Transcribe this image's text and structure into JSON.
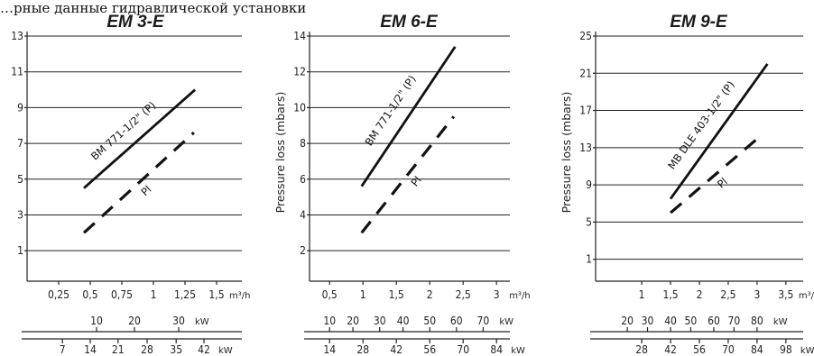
{
  "overlay_text": "…рные данные гидравлической установки",
  "chart_data": [
    {
      "type": "line",
      "title": "EM 3-E",
      "ylabel": "",
      "ylim": [
        0,
        13
      ],
      "yticks": [
        "1",
        "3",
        "5",
        "7",
        "9",
        "11",
        "13"
      ],
      "xlim": [
        0.0,
        1.7
      ],
      "xticks": [
        "0,25",
        "0,5",
        "0,75",
        "1",
        "1,25",
        "1,5"
      ],
      "xunit": "m³/h",
      "scale2": {
        "unit": "kW",
        "ticks": [
          {
            "label": "10",
            "x": 0.55
          },
          {
            "label": "20",
            "x": 0.85
          },
          {
            "label": "30",
            "x": 1.2
          }
        ]
      },
      "scale3": {
        "unit": "kW",
        "ticks": [
          {
            "label": "7",
            "x": 0.28
          },
          {
            "label": "14",
            "x": 0.5
          },
          {
            "label": "21",
            "x": 0.72
          },
          {
            "label": "28",
            "x": 0.95
          },
          {
            "label": "35",
            "x": 1.18
          },
          {
            "label": "42",
            "x": 1.4
          }
        ]
      },
      "series": [
        {
          "name": "BM 771-1/2\" (P)",
          "style": "solid",
          "x": [
            0.45,
            1.33
          ],
          "y": [
            4.5,
            10.0
          ]
        },
        {
          "name": "Pl",
          "style": "dashed",
          "x": [
            0.45,
            1.32
          ],
          "y": [
            2.0,
            7.6
          ]
        }
      ]
    },
    {
      "type": "line",
      "title": "EM 6-E",
      "ylabel": "Pressure loss (mbars)",
      "ylim": [
        1,
        14
      ],
      "yticks": [
        "2",
        "4",
        "6",
        "8",
        "10",
        "12",
        "14"
      ],
      "xlim": [
        0.2,
        3.2
      ],
      "xticks": [
        "0,5",
        "1",
        "1,5",
        "2",
        "2,5",
        "3"
      ],
      "xunit": "m³/h",
      "scale2": {
        "unit": "kW",
        "ticks": [
          {
            "label": "10",
            "x": 0.5
          },
          {
            "label": "20",
            "x": 0.85
          },
          {
            "label": "30",
            "x": 1.25
          },
          {
            "label": "40",
            "x": 1.6
          },
          {
            "label": "50",
            "x": 2.0
          },
          {
            "label": "60",
            "x": 2.4
          },
          {
            "label": "70",
            "x": 2.8
          }
        ]
      },
      "scale3": {
        "unit": "kW",
        "ticks": [
          {
            "label": "14",
            "x": 0.5
          },
          {
            "label": "28",
            "x": 1.0
          },
          {
            "label": "42",
            "x": 1.5
          },
          {
            "label": "56",
            "x": 2.0
          },
          {
            "label": "70",
            "x": 2.5
          },
          {
            "label": "84",
            "x": 3.0
          }
        ]
      },
      "series": [
        {
          "name": "BM 771-1/2\" (P)",
          "style": "solid",
          "x": [
            0.98,
            2.38
          ],
          "y": [
            5.6,
            13.4
          ]
        },
        {
          "name": "Pl",
          "style": "dashed",
          "x": [
            0.98,
            2.36
          ],
          "y": [
            3.0,
            9.5
          ]
        }
      ]
    },
    {
      "type": "line",
      "title": "EM 9-E",
      "ylabel": "Pressure loss (mbars)",
      "ylim": [
        0,
        25
      ],
      "yticks": [
        "1",
        "5",
        "9",
        "13",
        "17",
        "21",
        "25"
      ],
      "xlim": [
        0.2,
        3.8
      ],
      "xticks": [
        "1",
        "1,5",
        "2",
        "2,5",
        "3",
        "3,5"
      ],
      "xunit": "m³/h",
      "scale2": {
        "unit": "kW",
        "ticks": [
          {
            "label": "20",
            "x": 0.75
          },
          {
            "label": "30",
            "x": 1.1
          },
          {
            "label": "40",
            "x": 1.5
          },
          {
            "label": "50",
            "x": 1.85
          },
          {
            "label": "60",
            "x": 2.25
          },
          {
            "label": "70",
            "x": 2.6
          },
          {
            "label": "80",
            "x": 3.0
          }
        ]
      },
      "scale3": {
        "unit": "kW",
        "ticks": [
          {
            "label": "28",
            "x": 1.0
          },
          {
            "label": "42",
            "x": 1.5
          },
          {
            "label": "56",
            "x": 2.0
          },
          {
            "label": "70",
            "x": 2.5
          },
          {
            "label": "84",
            "x": 3.0
          },
          {
            "label": "98",
            "x": 3.5
          }
        ]
      },
      "series": [
        {
          "name": "MB DLE 403-1/2\" (P)",
          "style": "solid",
          "x": [
            1.5,
            3.18
          ],
          "y": [
            7.5,
            22.0
          ]
        },
        {
          "name": "Pl",
          "style": "dashed",
          "x": [
            1.5,
            3.05
          ],
          "y": [
            6.0,
            14.2
          ]
        }
      ]
    }
  ]
}
